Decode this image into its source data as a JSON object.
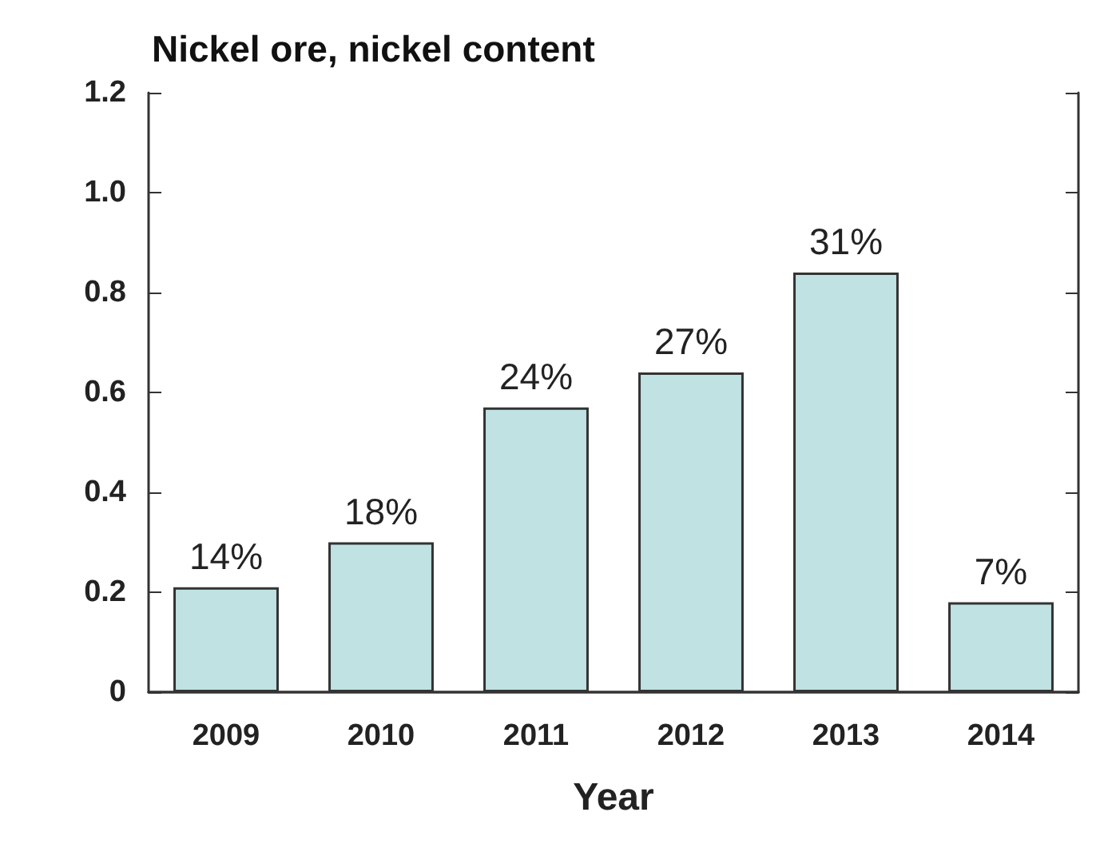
{
  "chart_data": {
    "type": "bar",
    "title": "Nickel ore, nickel content",
    "xlabel": "Year",
    "categories": [
      "2009",
      "2010",
      "2011",
      "2012",
      "2013",
      "2014"
    ],
    "values": [
      0.21,
      0.3,
      0.57,
      0.64,
      0.84,
      0.18
    ],
    "annotations": [
      {
        "text": "14%",
        "x": "2009",
        "y": 0.21
      },
      {
        "text": "18%",
        "x": "2010",
        "y": 0.3
      },
      {
        "text": "24%",
        "x": "2011",
        "y": 0.57
      },
      {
        "text": "27%",
        "x": "2012",
        "y": 0.64
      },
      {
        "text": "31%",
        "x": "2013",
        "y": 0.84
      },
      {
        "text": "7%",
        "x": "2014",
        "y": 0.18
      }
    ],
    "color": "#c0e2e2",
    "ylim": [
      0,
      1.2
    ],
    "yticks": [
      0,
      0.2,
      0.4,
      0.6,
      0.8,
      {
        "value": 1,
        "label": "1.0"
      },
      1.2
    ],
    "grid": false
  }
}
